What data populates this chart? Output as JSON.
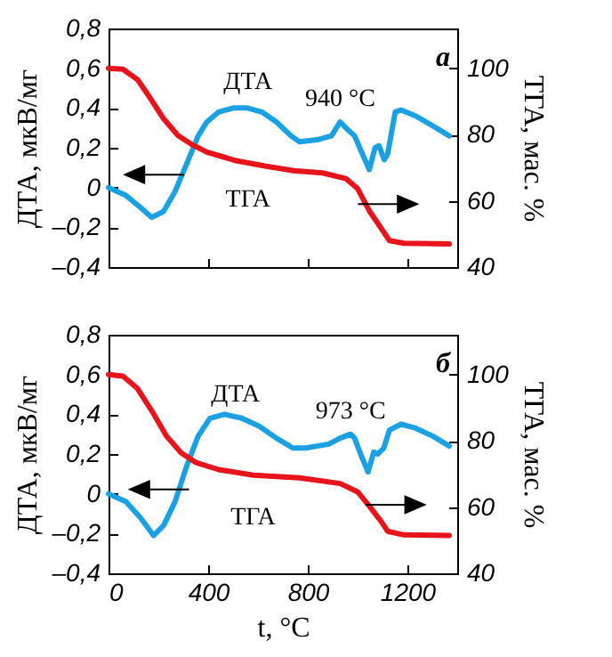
{
  "chart_data": [
    {
      "type": "line",
      "ylabel": "ДТА, мкВ/мг",
      "y2label": "ТГА, мас. %",
      "annotations": [
        "а",
        {
          "text": "940 °C",
          "x": 930,
          "y": 0.33
        }
      ],
      "xlim": [
        0,
        1400
      ],
      "xticks": [
        0,
        400,
        800,
        1200
      ],
      "ylim": [
        -0.4,
        0.8
      ],
      "yticks": [
        {
          "value": -0.4,
          "label": "–0,4"
        },
        {
          "value": -0.2,
          "label": "–0,2"
        },
        0,
        {
          "value": 0.2,
          "label": "0,2"
        },
        {
          "value": 0.4,
          "label": "0,4"
        },
        {
          "value": 0.6,
          "label": "0,6"
        },
        {
          "value": 0.8,
          "label": "0,8"
        }
      ],
      "y2lim": [
        40,
        112
      ],
      "y2ticks": [
        40,
        60,
        80,
        100
      ],
      "tick_labels": "y",
      "grid": false,
      "legend": false,
      "marker": "none",
      "line_style": "solid",
      "series": [
        {
          "name": "ДТА",
          "color": "#1ba1e2",
          "x": [
            0,
            70,
            128,
            174,
            221,
            267,
            314,
            360,
            395,
            442,
            500,
            558,
            616,
            674,
            733,
            767,
            837,
            895,
            930,
            953,
            988,
            1019,
            1047,
            1070,
            1086,
            1107,
            1121,
            1151,
            1174,
            1233,
            1302,
            1368
          ],
          "values": [
            0,
            -0.04,
            -0.1,
            -0.15,
            -0.12,
            -0.02,
            0.12,
            0.26,
            0.33,
            0.38,
            0.4,
            0.4,
            0.38,
            0.33,
            0.26,
            0.23,
            0.24,
            0.26,
            0.33,
            0.3,
            0.26,
            0.17,
            0.09,
            0.2,
            0.21,
            0.14,
            0.17,
            0.38,
            0.39,
            0.36,
            0.31,
            0.26
          ]
        },
        {
          "name": "ТГА",
          "color": "#e8141c",
          "axis": "y2",
          "x": [
            0,
            58,
            116,
            163,
            221,
            279,
            337,
            395,
            512,
            628,
            744,
            860,
            953,
            1000,
            1047,
            1093,
            1128,
            1186,
            1368
          ],
          "values": [
            100,
            99.7,
            96.6,
            91.5,
            84.8,
            79.7,
            76.9,
            74.7,
            72.1,
            70.5,
            69.1,
            68.4,
            66.7,
            63.7,
            57,
            51.9,
            48,
            47.2,
            47
          ]
        }
      ]
    },
    {
      "type": "line",
      "xlabel": "t, °C",
      "ylabel": "ДТА, мкВ/мг",
      "y2label": "ТГА, мас. %",
      "annotations": [
        "б",
        {
          "text": "973 °C",
          "x": 972,
          "y": 0.3
        }
      ],
      "xlim": [
        0,
        1400
      ],
      "xticks": [
        0,
        400,
        800,
        1200
      ],
      "ylim": [
        -0.4,
        0.8
      ],
      "yticks": [
        {
          "value": -0.4,
          "label": "–0,4"
        },
        {
          "value": -0.2,
          "label": "–0,2"
        },
        0,
        {
          "value": 0.2,
          "label": "0,2"
        },
        {
          "value": 0.4,
          "label": "0,4"
        },
        {
          "value": 0.6,
          "label": "0,6"
        },
        {
          "value": 0.8,
          "label": "0,8"
        }
      ],
      "y2lim": [
        40,
        112
      ],
      "y2ticks": [
        40,
        60,
        80,
        100
      ],
      "grid": false,
      "legend": false,
      "marker": "none",
      "line_style": "solid",
      "series": [
        {
          "name": "ДТА",
          "color": "#1ba1e2",
          "x": [
            0,
            70,
            128,
            181,
            221,
            267,
            314,
            360,
            407,
            465,
            535,
            605,
            674,
            740,
            791,
            884,
            930,
            972,
            988,
            1012,
            1042,
            1065,
            1081,
            1105,
            1128,
            1174,
            1233,
            1302,
            1368
          ],
          "values": [
            0,
            -0.04,
            -0.12,
            -0.21,
            -0.16,
            -0.04,
            0.14,
            0.29,
            0.38,
            0.4,
            0.38,
            0.34,
            0.28,
            0.23,
            0.23,
            0.25,
            0.28,
            0.3,
            0.28,
            0.2,
            0.11,
            0.21,
            0.2,
            0.23,
            0.32,
            0.35,
            0.33,
            0.29,
            0.24
          ]
        },
        {
          "name": "ТГА",
          "color": "#e8141c",
          "axis": "y2",
          "x": [
            0,
            58,
            116,
            174,
            233,
            291,
            349,
            442,
            581,
            767,
            930,
            1000,
            1047,
            1093,
            1121,
            1186,
            1368
          ],
          "values": [
            100,
            99.5,
            95.8,
            89,
            81.4,
            76.4,
            73.5,
            71.3,
            69.6,
            68.8,
            67.1,
            64.6,
            60.3,
            55.8,
            52.7,
            51.6,
            51.4
          ]
        }
      ]
    }
  ]
}
